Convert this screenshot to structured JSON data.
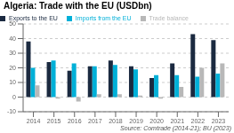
{
  "chart_data": {
    "type": "bar",
    "title": "Algeria: Trade with the EU (USDbn)",
    "categories": [
      "2014",
      "2015",
      "2016",
      "2017",
      "2018",
      "2019",
      "2020",
      "2021",
      "2022",
      "2023"
    ],
    "series": [
      {
        "name": "Exports to the EU",
        "color": "#1b2a40",
        "values": [
          38,
          24,
          18,
          21,
          25,
          21,
          13,
          23,
          43,
          39
        ]
      },
      {
        "name": "Imports from the EU",
        "color": "#00b0d8",
        "values": [
          20,
          25,
          23,
          21,
          22,
          19,
          15,
          15,
          14,
          16
        ]
      },
      {
        "name": "Trade balance",
        "color": "#b8b8b8",
        "values": [
          8,
          -1,
          -3,
          2,
          2,
          1,
          -1,
          7,
          20,
          23
        ]
      }
    ],
    "ylim": [
      -10,
      50
    ],
    "yticks": [
      -10,
      0,
      10,
      20,
      30,
      40,
      50
    ],
    "grid": true,
    "legend": "upper left",
    "annotations": [
      "Source: Comtrade (2014-21); BU (2023)"
    ]
  }
}
